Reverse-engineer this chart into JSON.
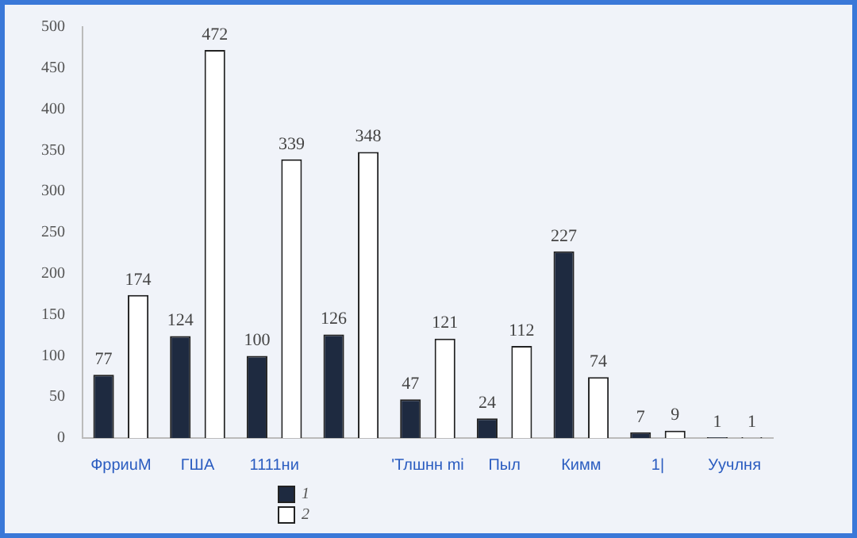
{
  "chart_data": {
    "type": "bar",
    "categories": [
      "ФрриuM",
      "ГША",
      "1111ни",
      null,
      "'Тлшнн mi",
      "Пыл",
      "Кимм",
      "1|",
      "Уучлня"
    ],
    "series": [
      {
        "name": "1",
        "color": "#1e2a40",
        "values": [
          77,
          124,
          100,
          126,
          47,
          24,
          227,
          7,
          1
        ]
      },
      {
        "name": "2",
        "color": "#ffffff",
        "values": [
          174,
          472,
          339,
          348,
          121,
          112,
          74,
          9,
          1
        ]
      }
    ],
    "ylim": [
      0,
      500
    ],
    "yticks": [
      0,
      50,
      100,
      150,
      200,
      250,
      300,
      350,
      400,
      450,
      500
    ],
    "grid": false,
    "legend": "bottom",
    "data_labels": true
  }
}
